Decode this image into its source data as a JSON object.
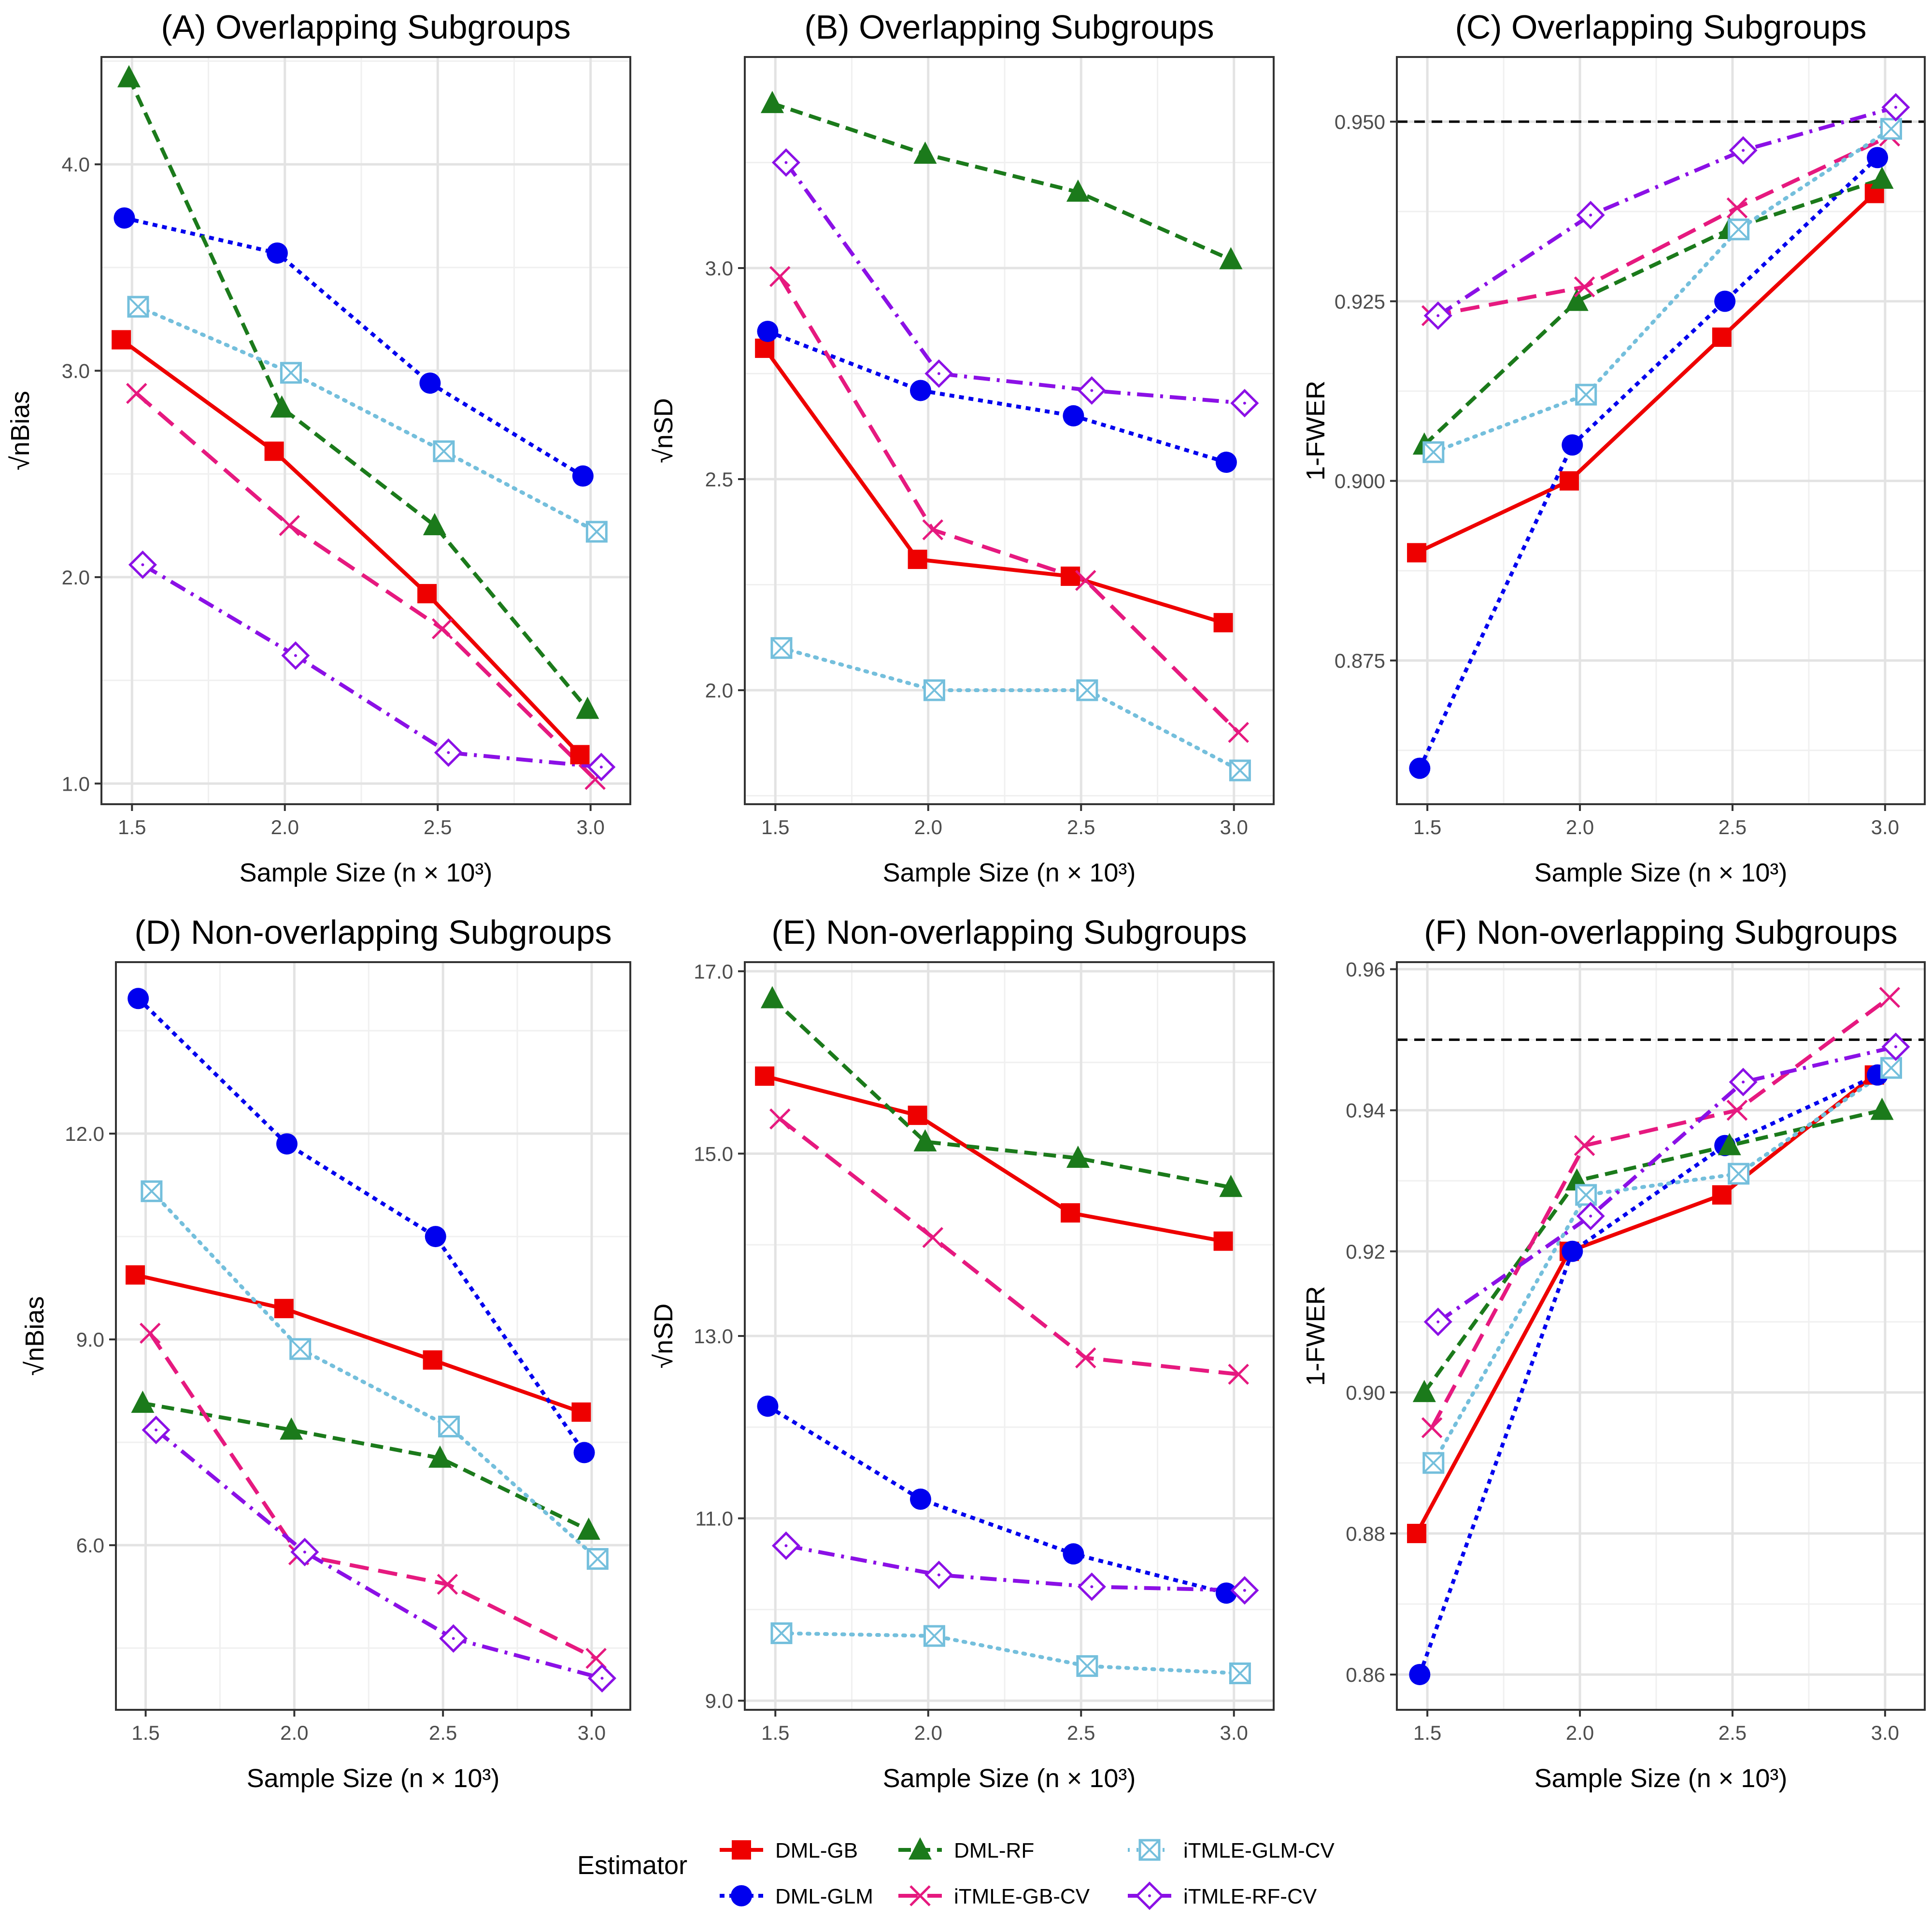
{
  "figure": {
    "legend_title": "Estimator",
    "x_axis_label": "Sample Size (n × 10³)"
  },
  "estimators": [
    {
      "name": "DML-GB",
      "color": "#ee0000",
      "shape": "square-filled",
      "line": "solid"
    },
    {
      "name": "DML-GLM",
      "color": "#0000ee",
      "shape": "circle-filled",
      "line": "dotted"
    },
    {
      "name": "DML-RF",
      "color": "#1b7a1b",
      "shape": "triangle-filled",
      "line": "dashed"
    },
    {
      "name": "iTMLE-GB-CV",
      "color": "#e6197f",
      "shape": "cross",
      "line": "longdash"
    },
    {
      "name": "iTMLE-GLM-CV",
      "color": "#74bfdc",
      "shape": "square-cross",
      "line": "dotted-fine"
    },
    {
      "name": "iTMLE-RF-CV",
      "color": "#8b10e6",
      "shape": "diamond-open",
      "line": "dotdash"
    }
  ],
  "chart_data": [
    {
      "type": "line",
      "title": "(A) Overlapping Subgroups",
      "xlabel": "Sample Size (n × 10³)",
      "ylabel": "√nBias",
      "xlim": [
        1.4,
        3.13
      ],
      "ylim": [
        0.9,
        4.52
      ],
      "x_ticks": [
        "1.5",
        "2.0",
        "2.5",
        "3.0"
      ],
      "y_ticks": [
        "1.0",
        "2.0",
        "3.0",
        "4.0"
      ],
      "x": [
        1.5,
        2.0,
        2.5,
        3.0
      ],
      "series": [
        {
          "name": "DML-GB",
          "values": [
            3.15,
            2.61,
            1.92,
            1.14
          ]
        },
        {
          "name": "DML-GLM",
          "values": [
            3.74,
            3.57,
            2.94,
            2.49
          ]
        },
        {
          "name": "DML-RF",
          "values": [
            4.42,
            2.82,
            2.25,
            1.36
          ]
        },
        {
          "name": "iTMLE-GB-CV",
          "values": [
            2.89,
            2.25,
            1.75,
            1.02
          ]
        },
        {
          "name": "iTMLE-GLM-CV",
          "values": [
            3.31,
            2.99,
            2.61,
            2.22
          ]
        },
        {
          "name": "iTMLE-RF-CV",
          "values": [
            2.06,
            1.62,
            1.15,
            1.08
          ]
        }
      ]
    },
    {
      "type": "line",
      "title": "(B) Overlapping Subgroups",
      "xlabel": "Sample Size (n × 10³)",
      "ylabel": "√nSD",
      "xlim": [
        1.4,
        3.13
      ],
      "ylim": [
        1.73,
        3.5
      ],
      "x_ticks": [
        "1.5",
        "2.0",
        "2.5",
        "3.0"
      ],
      "y_ticks": [
        "2.0",
        "2.5",
        "3.0"
      ],
      "x": [
        1.5,
        2.0,
        2.5,
        3.0
      ],
      "series": [
        {
          "name": "DML-GB",
          "values": [
            2.81,
            2.31,
            2.27,
            2.16
          ]
        },
        {
          "name": "DML-GLM",
          "values": [
            2.85,
            2.71,
            2.65,
            2.54
          ]
        },
        {
          "name": "DML-RF",
          "values": [
            3.39,
            3.27,
            3.18,
            3.02
          ]
        },
        {
          "name": "iTMLE-GB-CV",
          "values": [
            2.98,
            2.38,
            2.26,
            1.9
          ]
        },
        {
          "name": "iTMLE-GLM-CV",
          "values": [
            2.1,
            2.0,
            2.0,
            1.81
          ]
        },
        {
          "name": "iTMLE-RF-CV",
          "values": [
            3.25,
            2.75,
            2.71,
            2.68
          ]
        }
      ]
    },
    {
      "type": "line",
      "title": "(C) Overlapping Subgroups",
      "xlabel": "Sample Size (n × 10³)",
      "ylabel": "1-FWER",
      "xlim": [
        1.4,
        3.13
      ],
      "ylim": [
        0.855,
        0.959
      ],
      "x_ticks": [
        "1.5",
        "2.0",
        "2.5",
        "3.0"
      ],
      "y_ticks": [
        "0.875",
        "0.900",
        "0.925",
        "0.950"
      ],
      "reference_line": 0.95,
      "x": [
        1.5,
        2.0,
        2.5,
        3.0
      ],
      "series": [
        {
          "name": "DML-GB",
          "values": [
            0.89,
            0.9,
            0.92,
            0.94
          ]
        },
        {
          "name": "DML-GLM",
          "values": [
            0.86,
            0.905,
            0.925,
            0.945
          ]
        },
        {
          "name": "DML-RF",
          "values": [
            0.905,
            0.925,
            0.935,
            0.942
          ]
        },
        {
          "name": "iTMLE-GB-CV",
          "values": [
            0.923,
            0.927,
            0.938,
            0.948
          ]
        },
        {
          "name": "iTMLE-GLM-CV",
          "values": [
            0.904,
            0.912,
            0.935,
            0.949
          ]
        },
        {
          "name": "iTMLE-RF-CV",
          "values": [
            0.923,
            0.937,
            0.946,
            0.952
          ]
        }
      ]
    },
    {
      "type": "line",
      "title": "(D) Non-overlapping Subgroups",
      "xlabel": "Sample Size (n × 10³)",
      "ylabel": "√nBias",
      "xlim": [
        1.4,
        3.13
      ],
      "ylim": [
        3.6,
        14.5
      ],
      "x_ticks": [
        "1.5",
        "2.0",
        "2.5",
        "3.0"
      ],
      "y_ticks": [
        "6.0",
        "9.0",
        "12.0"
      ],
      "x": [
        1.5,
        2.0,
        2.5,
        3.0
      ],
      "series": [
        {
          "name": "DML-GB",
          "values": [
            9.94,
            9.45,
            8.7,
            7.94
          ]
        },
        {
          "name": "DML-GLM",
          "values": [
            13.97,
            11.85,
            10.5,
            7.35
          ]
        },
        {
          "name": "DML-RF",
          "values": [
            8.07,
            7.68,
            7.27,
            6.22
          ]
        },
        {
          "name": "iTMLE-GB-CV",
          "values": [
            9.09,
            5.86,
            5.43,
            4.35
          ]
        },
        {
          "name": "iTMLE-GLM-CV",
          "values": [
            11.16,
            8.86,
            7.73,
            5.8
          ]
        },
        {
          "name": "iTMLE-RF-CV",
          "values": [
            7.68,
            5.9,
            4.64,
            4.06
          ]
        }
      ]
    },
    {
      "type": "line",
      "title": "(E) Non-overlapping Subgroups",
      "xlabel": "Sample Size (n × 10³)",
      "ylabel": "√nSD",
      "xlim": [
        1.4,
        3.13
      ],
      "ylim": [
        8.9,
        17.1
      ],
      "x_ticks": [
        "1.5",
        "2.0",
        "2.5",
        "3.0"
      ],
      "y_ticks": [
        "9.0",
        "11.0",
        "13.0",
        "15.0",
        "17.0"
      ],
      "x": [
        1.5,
        2.0,
        2.5,
        3.0
      ],
      "series": [
        {
          "name": "DML-GB",
          "values": [
            15.85,
            15.42,
            14.35,
            14.04
          ]
        },
        {
          "name": "DML-GLM",
          "values": [
            12.23,
            11.21,
            10.61,
            10.18
          ]
        },
        {
          "name": "DML-RF",
          "values": [
            16.7,
            15.13,
            14.95,
            14.63
          ]
        },
        {
          "name": "iTMLE-GB-CV",
          "values": [
            15.38,
            14.08,
            12.76,
            12.58
          ]
        },
        {
          "name": "iTMLE-GLM-CV",
          "values": [
            9.74,
            9.71,
            9.38,
            9.3
          ]
        },
        {
          "name": "iTMLE-RF-CV",
          "values": [
            10.7,
            10.38,
            10.25,
            10.21
          ]
        }
      ]
    },
    {
      "type": "line",
      "title": "(F) Non-overlapping Subgroups",
      "xlabel": "Sample Size (n × 10³)",
      "ylabel": "1-FWER",
      "xlim": [
        1.4,
        3.13
      ],
      "ylim": [
        0.855,
        0.961
      ],
      "x_ticks": [
        "1.5",
        "2.0",
        "2.5",
        "3.0"
      ],
      "y_ticks": [
        "0.86",
        "0.88",
        "0.90",
        "0.92",
        "0.94",
        "0.96"
      ],
      "reference_line": 0.95,
      "x": [
        1.5,
        2.0,
        2.5,
        3.0
      ],
      "series": [
        {
          "name": "DML-GB",
          "values": [
            0.88,
            0.92,
            0.928,
            0.945
          ]
        },
        {
          "name": "DML-GLM",
          "values": [
            0.86,
            0.92,
            0.935,
            0.945
          ]
        },
        {
          "name": "DML-RF",
          "values": [
            0.9,
            0.93,
            0.935,
            0.94
          ]
        },
        {
          "name": "iTMLE-GB-CV",
          "values": [
            0.895,
            0.935,
            0.94,
            0.956
          ]
        },
        {
          "name": "iTMLE-GLM-CV",
          "values": [
            0.89,
            0.928,
            0.931,
            0.946
          ]
        },
        {
          "name": "iTMLE-RF-CV",
          "values": [
            0.91,
            0.925,
            0.944,
            0.949
          ]
        }
      ]
    }
  ]
}
